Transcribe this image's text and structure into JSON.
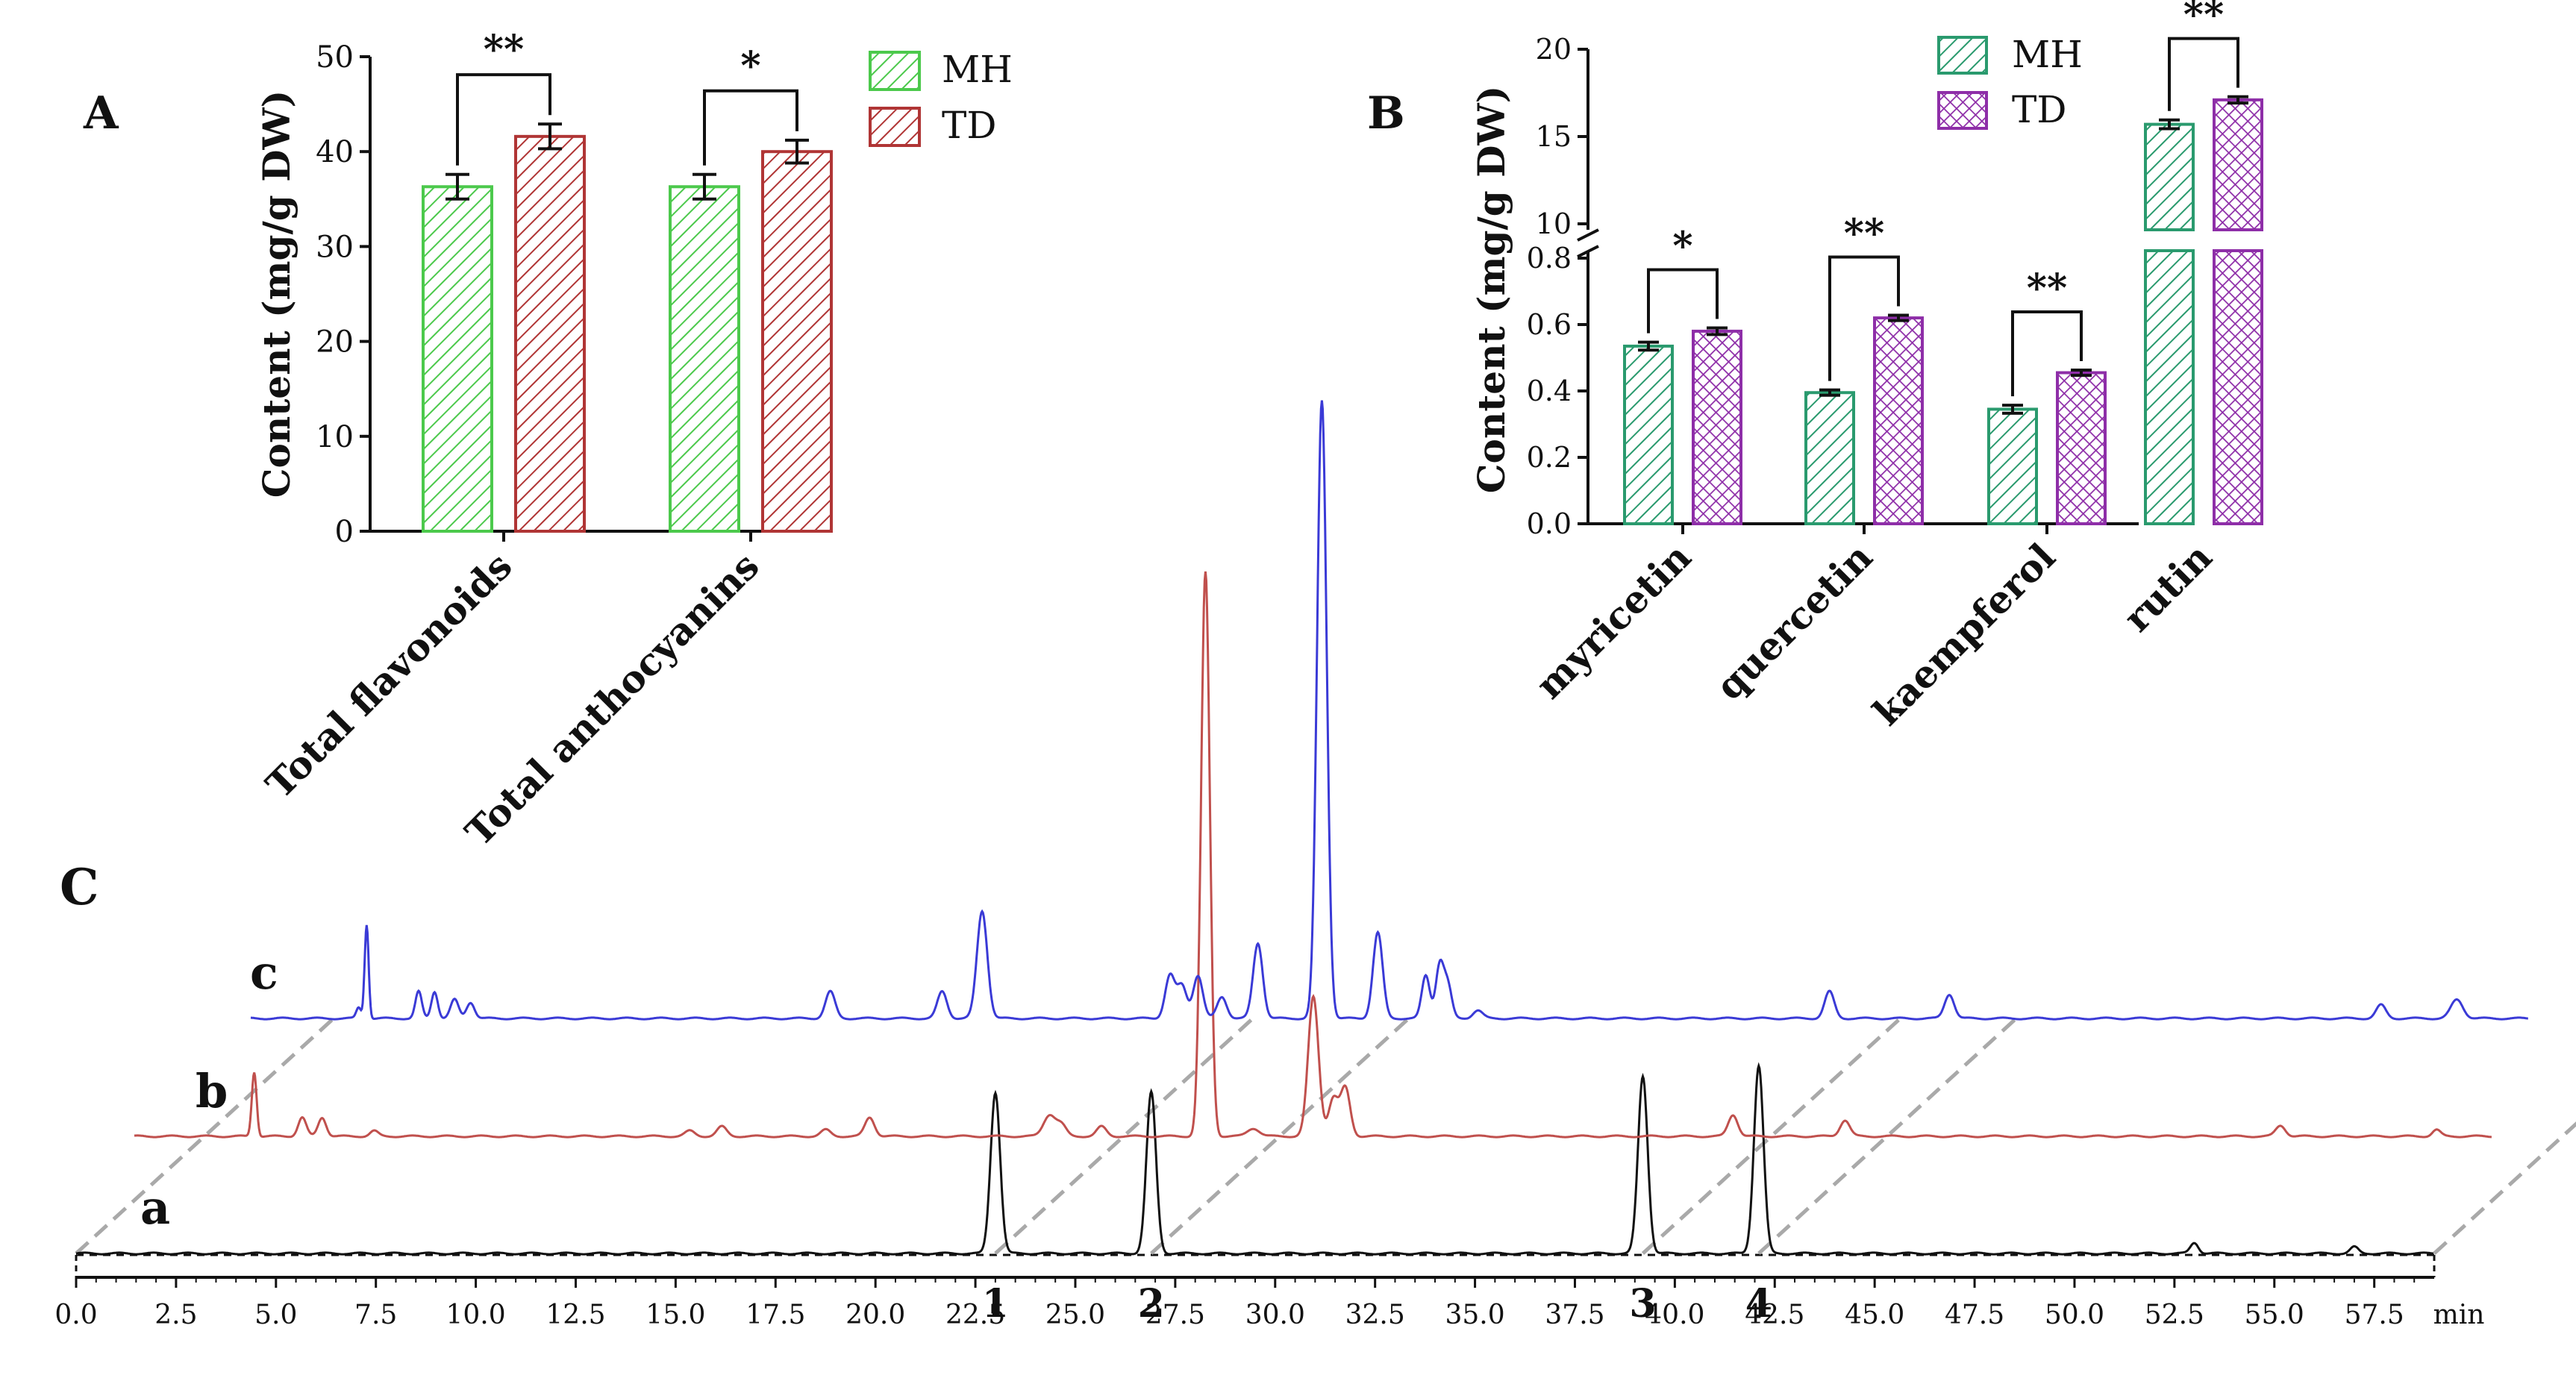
{
  "chart_data": [
    {
      "panel": "A",
      "type": "bar",
      "ylabel": "Content  (mg/g DW)",
      "ylim": [
        0,
        50
      ],
      "yticks": [
        0,
        10,
        20,
        30,
        40,
        50
      ],
      "categories": [
        "Total flavonoids",
        "Total anthocyanins"
      ],
      "series": [
        {
          "name": "MH",
          "values": [
            36.3,
            36.3
          ],
          "errors": [
            1.3,
            1.3
          ],
          "color": "#4cc94c"
        },
        {
          "name": "TD",
          "values": [
            41.6,
            40.0
          ],
          "errors": [
            1.3,
            1.2
          ],
          "color": "#b03535"
        }
      ],
      "significance": [
        "**",
        "*"
      ],
      "legend_position": "top-right"
    },
    {
      "panel": "B",
      "type": "bar",
      "ylabel": "Content  (mg/g DW)",
      "ylim_lower": [
        0.0,
        0.8
      ],
      "ylim_upper": [
        10,
        20
      ],
      "yticks_lower": [
        "0.0",
        "0.2",
        "0.4",
        "0.6",
        "0.8"
      ],
      "yticks_upper": [
        "10",
        "15",
        "20"
      ],
      "categories": [
        "myricetin",
        "quercetin",
        "kaempferol",
        "rutin"
      ],
      "series": [
        {
          "name": "MH",
          "values": [
            0.535,
            0.395,
            0.345,
            15.7
          ],
          "errors": [
            0.012,
            0.008,
            0.012,
            0.25
          ],
          "color": "#2a9a6e"
        },
        {
          "name": "TD",
          "values": [
            0.58,
            0.62,
            0.455,
            17.1
          ],
          "errors": [
            0.01,
            0.008,
            0.008,
            0.18
          ],
          "color": "#8e2ea8"
        }
      ],
      "significance": [
        "*",
        "**",
        "**",
        "**"
      ],
      "legend_position": "top-right"
    },
    {
      "panel": "C",
      "type": "line",
      "xlabel": "min",
      "xlim": [
        0,
        59
      ],
      "xticks": [
        "0.0",
        "2.5",
        "5.0",
        "7.5",
        "10.0",
        "12.5",
        "15.0",
        "17.5",
        "20.0",
        "22.5",
        "25.0",
        "27.5",
        "30.0",
        "32.5",
        "35.0",
        "37.5",
        "40.0",
        "42.5",
        "45.0",
        "47.5",
        "50.0",
        "52.5",
        "55.0",
        "57.5"
      ],
      "series": [
        {
          "name": "a",
          "color": "#111111",
          "x_start": 0,
          "x_end": 59,
          "peaks": [
            [
              23.0,
              3.0,
              0.12
            ],
            [
              26.9,
              3.0,
              0.12
            ],
            [
              39.2,
              3.3,
              0.12
            ],
            [
              42.1,
              3.5,
              0.12
            ],
            [
              53.0,
              0.2,
              0.1
            ],
            [
              57.0,
              0.12,
              0.1
            ]
          ]
        },
        {
          "name": "b",
          "color": "#c0504d",
          "x_start": 0,
          "x_end": 59,
          "peaks": [
            [
              3.0,
              1.2,
              0.06
            ],
            [
              4.2,
              0.35,
              0.1
            ],
            [
              4.7,
              0.35,
              0.1
            ],
            [
              6.0,
              0.1,
              0.1
            ],
            [
              13.9,
              0.1,
              0.12
            ],
            [
              14.7,
              0.18,
              0.12
            ],
            [
              17.3,
              0.12,
              0.12
            ],
            [
              18.4,
              0.35,
              0.12
            ],
            [
              22.9,
              0.4,
              0.15
            ],
            [
              23.2,
              0.2,
              0.12
            ],
            [
              24.2,
              0.18,
              0.12
            ],
            [
              26.8,
              10.5,
              0.11
            ],
            [
              28.0,
              0.15,
              0.15
            ],
            [
              29.5,
              2.6,
              0.13
            ],
            [
              30.0,
              0.7,
              0.12
            ],
            [
              30.3,
              0.9,
              0.12
            ],
            [
              40.0,
              0.4,
              0.12
            ],
            [
              42.8,
              0.3,
              0.12
            ],
            [
              53.7,
              0.2,
              0.12
            ],
            [
              57.6,
              0.12,
              0.1
            ]
          ]
        },
        {
          "name": "c",
          "color": "#3a3ad6",
          "x_start": 0,
          "x_end": 57,
          "peaks": [
            [
              2.7,
              0.2,
              0.06
            ],
            [
              2.9,
              1.75,
              0.05
            ],
            [
              4.2,
              0.5,
              0.08
            ],
            [
              4.6,
              0.5,
              0.08
            ],
            [
              5.1,
              0.35,
              0.1
            ],
            [
              5.5,
              0.3,
              0.1
            ],
            [
              14.5,
              0.5,
              0.12
            ],
            [
              17.3,
              0.5,
              0.12
            ],
            [
              18.3,
              2.0,
              0.13
            ],
            [
              23.0,
              0.8,
              0.12
            ],
            [
              23.3,
              0.6,
              0.12
            ],
            [
              23.7,
              0.8,
              0.12
            ],
            [
              24.3,
              0.4,
              0.12
            ],
            [
              25.2,
              1.4,
              0.12
            ],
            [
              26.8,
              11.5,
              0.12
            ],
            [
              28.2,
              1.6,
              0.12
            ],
            [
              29.4,
              0.8,
              0.1
            ],
            [
              29.75,
              1.0,
              0.1
            ],
            [
              29.95,
              0.6,
              0.1
            ],
            [
              30.7,
              0.15,
              0.12
            ],
            [
              39.5,
              0.5,
              0.12
            ],
            [
              42.5,
              0.45,
              0.12
            ],
            [
              53.3,
              0.25,
              0.12
            ],
            [
              55.2,
              0.35,
              0.15
            ]
          ]
        }
      ],
      "peak_labels": [
        "1",
        "2",
        "3",
        "4"
      ],
      "peak_times": [
        23.0,
        26.9,
        39.2,
        42.1
      ]
    }
  ],
  "panel_labels": {
    "a": "A",
    "b": "B",
    "c": "C"
  },
  "trace_labels": {
    "a": "a",
    "b": "b",
    "c": "c"
  }
}
